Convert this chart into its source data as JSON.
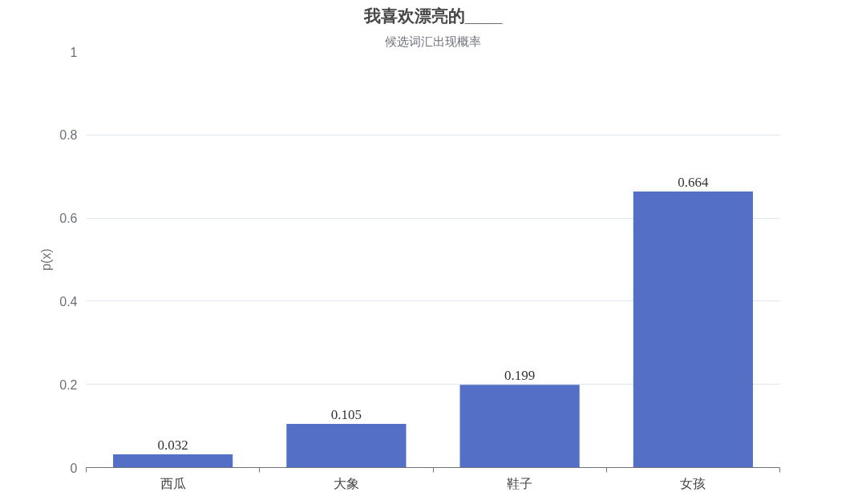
{
  "chart_data": {
    "type": "bar",
    "title": "我喜欢漂亮的____",
    "subtitle": "候选词汇出现概率",
    "ylabel": "p(x)",
    "categories": [
      "西瓜",
      "大象",
      "鞋子",
      "女孩"
    ],
    "values": [
      0.032,
      0.105,
      0.199,
      0.664
    ],
    "color": "#5470c6",
    "ylim": [
      0,
      1
    ],
    "yticks": [
      0,
      0.2,
      0.4,
      0.6,
      0.8,
      1
    ],
    "grid": "y",
    "data_labels": true
  }
}
